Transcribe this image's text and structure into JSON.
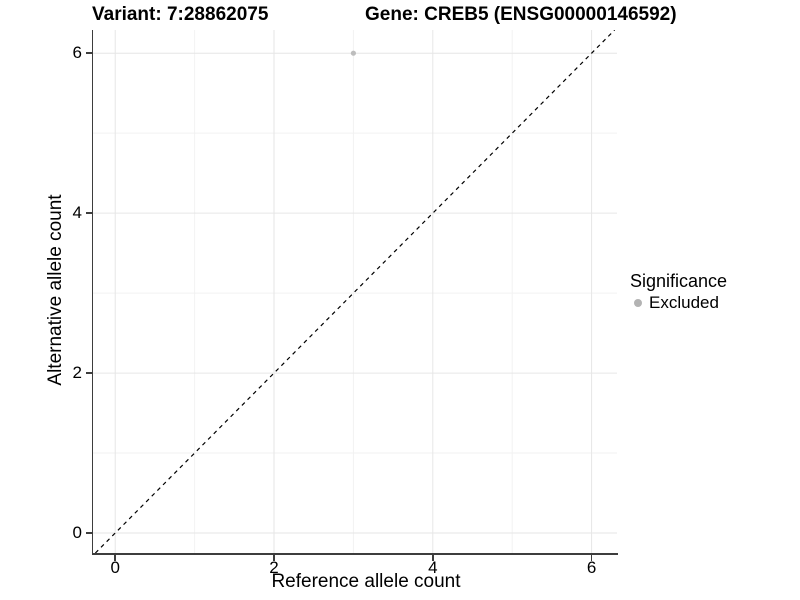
{
  "figure": {
    "title_left": "Variant: 7:28862075",
    "title_right": "Gene: CREB5 (ENSG00000146592)"
  },
  "chart_data": {
    "type": "scatter",
    "title": "Variant: 7:28862075    Gene: CREB5 (ENSG00000146592)",
    "xlabel": "Reference allele count",
    "ylabel": "Alternative allele count",
    "xlim": [
      -0.28,
      6.32
    ],
    "ylim": [
      -0.25,
      6.29
    ],
    "x_major_ticks": [
      0,
      2,
      4,
      6
    ],
    "y_major_ticks": [
      0,
      2,
      4,
      6
    ],
    "x_minor_ticks": [
      1,
      3,
      5
    ],
    "y_minor_ticks": [
      1,
      3,
      5
    ],
    "grid": true,
    "reference_line": {
      "type": "identity",
      "style": "dashed",
      "color": "#000000",
      "dash": "4,4"
    },
    "series": [
      {
        "name": "Excluded",
        "color": "#bdbdbd",
        "point_radius": 2.6,
        "points": [
          {
            "x": 3,
            "y": 6
          }
        ]
      }
    ],
    "legend": {
      "title": "Significance",
      "position": "right",
      "entries": [
        {
          "label": "Excluded",
          "color": "#b3b3b3"
        }
      ]
    }
  },
  "colors": {
    "background": "#ffffff",
    "axis_line": "#3d3d3d",
    "tick_mark": "#3d3d3d",
    "grid_major": "#e6e6e6",
    "grid_minor": "#f2f2f2",
    "text": "#000000"
  }
}
